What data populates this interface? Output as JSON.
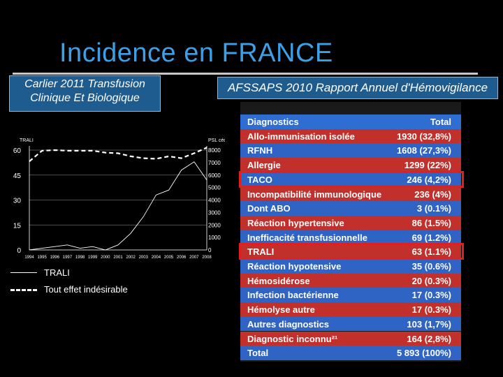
{
  "title": "Incidence en FRANCE",
  "source_left": [
    "Carlier 2011 Transfusion",
    "Clinique Et Biologique"
  ],
  "source_right": "AFSSAPS 2010 Rapport Annuel d'Hémovigilance",
  "chart_data": {
    "type": "line",
    "left_axis_label": "TRALI",
    "right_axis_label": "PSL cédés",
    "left_ticks": [
      "0",
      "15",
      "30",
      "45",
      "60"
    ],
    "right_ticks": [
      "0",
      "1000",
      "2000",
      "3000",
      "4000",
      "5000",
      "6000",
      "7000",
      "8000"
    ],
    "left_range": [
      0,
      60
    ],
    "x": [
      "1994",
      "1995",
      "1996",
      "1997",
      "1998",
      "1999",
      "2000",
      "2001",
      "2002",
      "2003",
      "2004",
      "2005",
      "2006",
      "2007",
      "2008"
    ],
    "series": [
      {
        "name": "TRALI",
        "style": "solid",
        "values": [
          0,
          1,
          2,
          3,
          1,
          2,
          0,
          3,
          10,
          20,
          33,
          36,
          48,
          53,
          42
        ]
      },
      {
        "name": "Tout effet indésirable",
        "style": "dashed",
        "values": [
          7100,
          7950,
          8000,
          7950,
          7950,
          7950,
          7800,
          7750,
          7500,
          7350,
          7300,
          7500,
          7350,
          7750,
          8200
        ]
      }
    ],
    "colors": {
      "line": "#ffffff",
      "grid": "#6a6a6a",
      "axis": "#cfcfcf"
    }
  },
  "legend": [
    {
      "label": "TRALI",
      "style": "solid"
    },
    {
      "label": "Tout effet indésirable",
      "style": "dashed"
    }
  ],
  "table": {
    "headers": [
      "Diagnostics",
      "Total"
    ],
    "rows": [
      {
        "dx": "Allo-immunisation isolée",
        "total": "1930 (32,8%)",
        "highlight": false
      },
      {
        "dx": "RFNH",
        "total": "1608 (27,3%)",
        "highlight": false
      },
      {
        "dx": "Allergie",
        "total": "1299 (22%)",
        "highlight": false
      },
      {
        "dx": "TACO",
        "total": "246 (4,2%)",
        "highlight": true
      },
      {
        "dx": "Incompatibilité immunologique",
        "total": "236 (4%)",
        "highlight": false
      },
      {
        "dx": "Dont ABO",
        "total": "3 (0.1%)",
        "highlight": false
      },
      {
        "dx": "Réaction hypertensive",
        "total": "86 (1.5%)",
        "highlight": false
      },
      {
        "dx": "Inefficacité transfusionnelle",
        "total": "69 (1.2%)",
        "highlight": false
      },
      {
        "dx": "TRALI",
        "total": "63 (1.1%)",
        "highlight": true
      },
      {
        "dx": "Réaction hypotensive",
        "total": "35 (0.6%)",
        "highlight": false
      },
      {
        "dx": "Hémosidérose",
        "total": "20 (0.3%)",
        "highlight": false
      },
      {
        "dx": "Infection bactérienne",
        "total": "17 (0.3%)",
        "highlight": false
      },
      {
        "dx": "Hémolyse autre",
        "total": "17 (0.3%)",
        "highlight": false
      },
      {
        "dx": "Autres diagnostics",
        "total": "103 (1,7%)",
        "highlight": false
      },
      {
        "dx": "Diagnostic inconnu²¹",
        "total": "164 (2,8%)",
        "highlight": false
      },
      {
        "dx": "Total",
        "total": "5 893 (100%)",
        "highlight": false
      }
    ],
    "colors": {
      "header": "#2e6dd1",
      "row_blue": "#2f64c4",
      "row_red": "#c2302c",
      "highlight_border": "#e02020"
    }
  }
}
